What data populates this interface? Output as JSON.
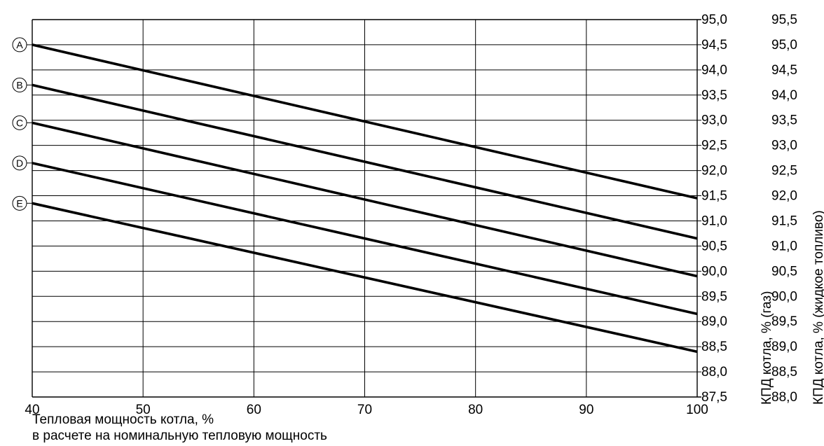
{
  "chart_data": {
    "type": "line",
    "x": [
      40,
      100
    ],
    "xlim": [
      40,
      100
    ],
    "x_ticks": [
      "40",
      "50",
      "60",
      "70",
      "80",
      "90",
      "100"
    ],
    "xlabel_lines": [
      "Тепловая мощность котла, %",
      "в расчете на номинальную тепловую мощность"
    ],
    "ylim_gas": [
      87.5,
      95.0
    ],
    "ylim_oil": [
      88.0,
      95.5
    ],
    "y_ticks_gas": [
      "95,0",
      "94,5",
      "94,0",
      "93,5",
      "93,0",
      "92,5",
      "92,0",
      "91,5",
      "91,0",
      "90,5",
      "90,0",
      "89,5",
      "89,0",
      "88,5",
      "88,0",
      "87,5"
    ],
    "y_ticks_oil": [
      "95,5",
      "95,0",
      "94,5",
      "94,0",
      "93,5",
      "93,0",
      "92,5",
      "92,0",
      "91,5",
      "91,0",
      "90,5",
      "90,0",
      "89,5",
      "89,0",
      "88,5",
      "88,0"
    ],
    "ylabel_gas": "КПД котла, % (газ)",
    "ylabel_oil": "КПД котла, % (жидкое топливо)",
    "grid": true,
    "series": [
      {
        "name": "A",
        "values_gas": [
          94.5,
          91.45
        ]
      },
      {
        "name": "B",
        "values_gas": [
          93.7,
          90.65
        ]
      },
      {
        "name": "C",
        "values_gas": [
          92.95,
          89.9
        ]
      },
      {
        "name": "D",
        "values_gas": [
          92.15,
          89.15
        ]
      },
      {
        "name": "E",
        "values_gas": [
          91.35,
          88.4
        ]
      }
    ],
    "line_color": "#000000",
    "grid_color": "#000000"
  }
}
